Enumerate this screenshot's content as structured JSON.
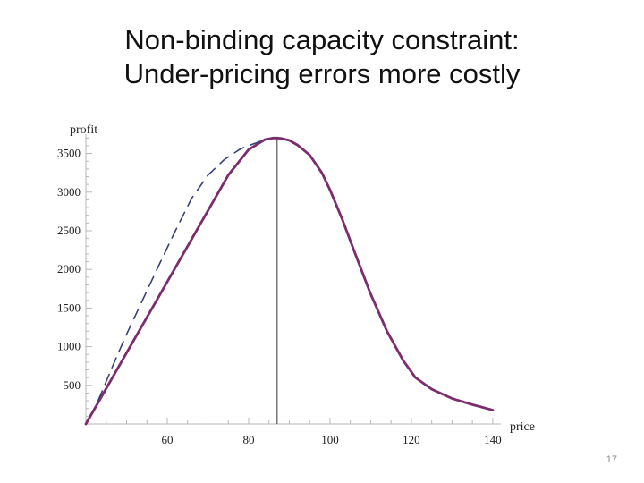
{
  "slide": {
    "title_line1": "Non-binding capacity constraint:",
    "title_line2": "Under-pricing errors more costly",
    "page_number": "17"
  },
  "chart_data": {
    "type": "line",
    "xlabel": "price",
    "ylabel": "profit",
    "xlim": [
      40,
      142
    ],
    "ylim": [
      0,
      3750
    ],
    "x_ticks": [
      60,
      80,
      100,
      120,
      140
    ],
    "y_ticks": [
      500,
      1000,
      1500,
      2000,
      2500,
      3000,
      3500
    ],
    "grid": false,
    "vertical_line_x": 87,
    "series": [
      {
        "style": "solid",
        "color": "#7b2d6e",
        "x": [
          40,
          45,
          50,
          55,
          60,
          65,
          70,
          75,
          80,
          84,
          86,
          87,
          88,
          90,
          92,
          95,
          98,
          100,
          103,
          106,
          110,
          114,
          118,
          121,
          125,
          130,
          135,
          140
        ],
        "y": [
          0,
          460,
          920,
          1380,
          1840,
          2300,
          2760,
          3220,
          3550,
          3680,
          3700,
          3700,
          3695,
          3670,
          3610,
          3480,
          3250,
          3030,
          2650,
          2230,
          1680,
          1200,
          820,
          600,
          450,
          330,
          250,
          180
        ]
      },
      {
        "style": "dashed",
        "color": "#3a4178",
        "x": [
          43,
          47,
          50,
          54,
          58,
          62,
          66,
          70,
          74,
          78,
          82,
          84
        ],
        "y": [
          300,
          800,
          1160,
          1610,
          2060,
          2500,
          2920,
          3220,
          3420,
          3560,
          3640,
          3680
        ]
      }
    ]
  }
}
